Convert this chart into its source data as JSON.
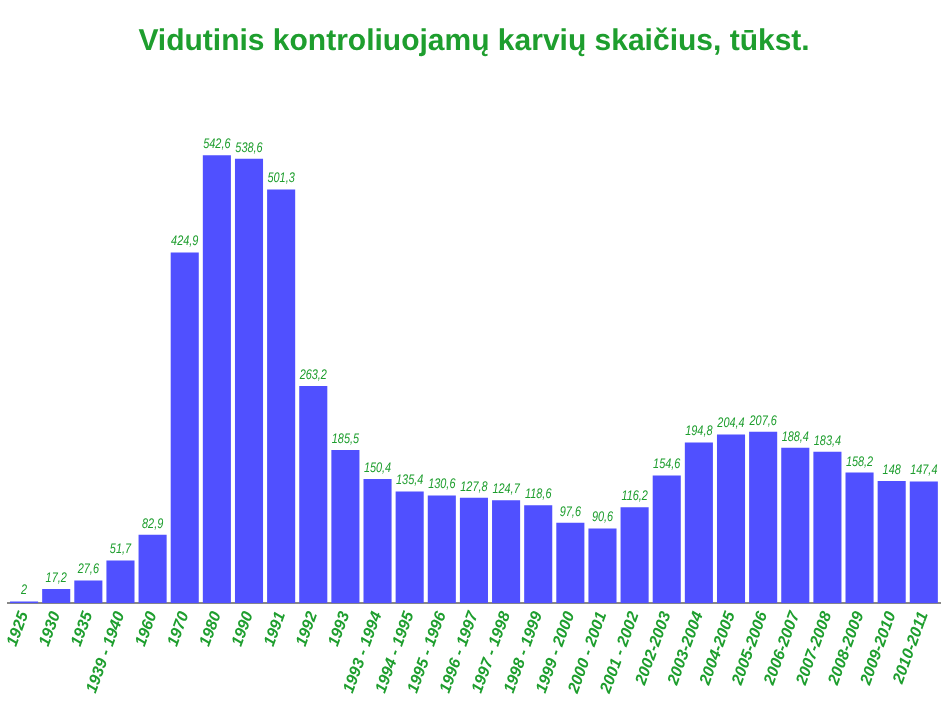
{
  "chart_data": {
    "type": "bar",
    "title": "Vidutinis kontroliuojamų karvių skaičius, tūkst.",
    "categories": [
      "1925",
      "1930",
      "1935",
      "1939 - 1940",
      "1960",
      "1970",
      "1980",
      "1990",
      "1991",
      "1992",
      "1993",
      "1993 - 1994",
      "1994 - 1995",
      "1995 - 1996",
      "1996 - 1997",
      "1997 - 1998",
      "1998 - 1999",
      "1999 - 2000",
      "2000 - 2001",
      "2001 - 2002",
      "2002-2003",
      "2003-2004",
      "2004-2005",
      "2005-2006",
      "2006-2007",
      "2007-2008",
      "2008-2009",
      "2009-2010",
      "2010-2011"
    ],
    "values": [
      2,
      17.2,
      27.6,
      51.7,
      82.9,
      424.9,
      542.6,
      538.6,
      501.3,
      263.2,
      185.5,
      150.4,
      135.4,
      130.6,
      127.8,
      124.7,
      118.6,
      97.6,
      90.6,
      116.2,
      154.6,
      194.8,
      204.4,
      207.6,
      188.4,
      183.4,
      158.2,
      148,
      147.4
    ],
    "value_labels": [
      "2",
      "17,2",
      "27,6",
      "51,7",
      "82,9",
      "424,9",
      "542,6",
      "538,6",
      "501,3",
      "263,2",
      "185,5",
      "150,4",
      "135,4",
      "130,6",
      "127,8",
      "124,7",
      "118,6",
      "97,6",
      "90,6",
      "116,2",
      "154,6",
      "194,8",
      "204,4",
      "207,6",
      "188,4",
      "183,4",
      "158,2",
      "148",
      "147,4"
    ],
    "color": "#5050ff",
    "tick_labels": "x",
    "grid": false,
    "legend": false
  }
}
